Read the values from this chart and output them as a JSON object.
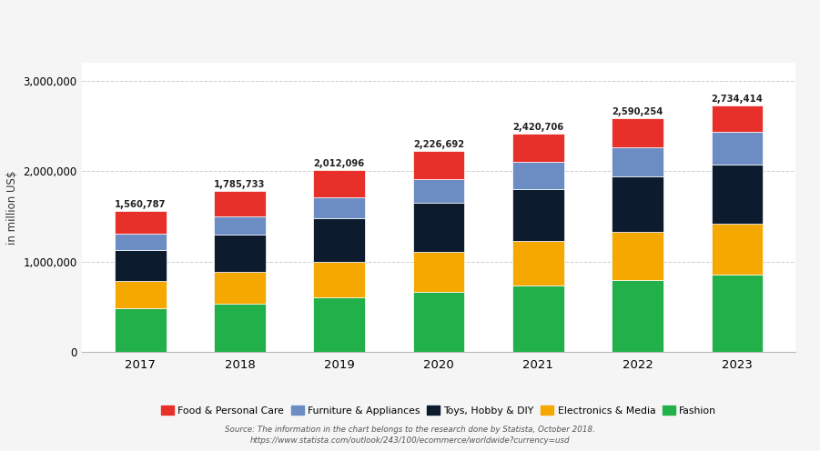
{
  "years": [
    2017,
    2018,
    2019,
    2020,
    2021,
    2022,
    2023
  ],
  "totals": [
    1560787,
    1785733,
    2012096,
    2226692,
    2420706,
    2590254,
    2734414
  ],
  "segments": {
    "Fashion": [
      481000,
      535000,
      601000,
      660000,
      735000,
      800000,
      860000
    ],
    "Electronics & Media": [
      302000,
      352000,
      400000,
      450000,
      495000,
      530000,
      560000
    ],
    "Toys, Hobby & DIY": [
      345000,
      408000,
      478000,
      540000,
      575000,
      618000,
      660000
    ],
    "Furniture & Appliances": [
      178787,
      205733,
      235096,
      267692,
      295706,
      322254,
      354414
    ],
    "Food & Personal Care": [
      254000,
      285000,
      298000,
      309000,
      320000,
      320000,
      300000
    ]
  },
  "colors": {
    "Fashion": "#22b04b",
    "Electronics & Media": "#f5a800",
    "Toys, Hobby & DIY": "#0d1b2e",
    "Furniture & Appliances": "#6b8dc4",
    "Food & Personal Care": "#e8302a"
  },
  "ylabel": "in million US$",
  "ylim": [
    0,
    3200000
  ],
  "yticks": [
    0,
    1000000,
    2000000,
    3000000
  ],
  "source_text": "Source: The information in the chart belongs to the research done by Statista, October 2018.\nhttps://www.statista.com/outlook/243/100/ecommerce/worldwide?currency=usd",
  "header_color": "#3aaa4a",
  "bar_width": 0.52,
  "fig_bg": "#f5f5f5"
}
